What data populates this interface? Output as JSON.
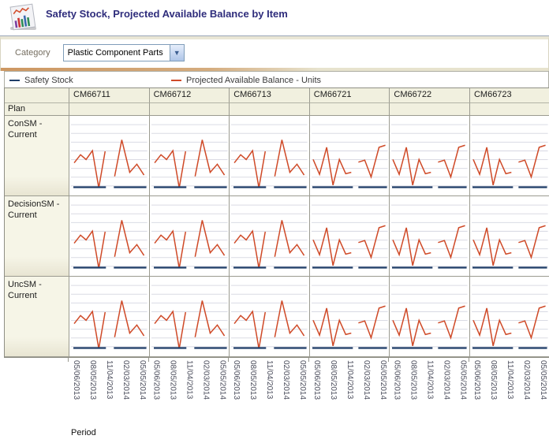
{
  "header": {
    "title": "Safety Stock, Projected Available Balance by Item",
    "icon": "chart-report-icon"
  },
  "filters": {
    "category_label": "Category",
    "category_value": "Plastic Component Parts"
  },
  "legend": [
    {
      "label": "Safety Stock",
      "color": "#1f3d68"
    },
    {
      "label": "Projected Available Balance - Units",
      "color": "#cf4a28"
    }
  ],
  "table": {
    "plan_header": "Plan",
    "columns": [
      "CM66711",
      "CM66712",
      "CM66713",
      "CM66721",
      "CM66722",
      "CM66723"
    ],
    "rows": [
      "ConSM - Current",
      "DecisionSM - Current",
      "UncSM - Current"
    ]
  },
  "chart_data": {
    "type": "line",
    "title": "Safety Stock, Projected Available Balance by Item",
    "layout": "trellis",
    "rows": [
      "ConSM - Current",
      "DecisionSM - Current",
      "UncSM - Current"
    ],
    "columns": [
      "CM66711",
      "CM66712",
      "CM66713",
      "CM66721",
      "CM66722",
      "CM66723"
    ],
    "xlabel": "Period",
    "ylabel": "",
    "x_tick_labels": [
      "05/06/2013",
      "08/05/2013",
      "11/04/2013",
      "02/03/2014",
      "05/05/2014"
    ],
    "grid": true,
    "legend_position": "top",
    "y_axis_visible": false,
    "value_note": "No y-axis labels are shown; y values are normalized 0-100 estimated from pixel heights. x is fraction of cell width. Each cell shows two disconnected segments per series. All three plan rows repeat the same per-item shapes.",
    "series_colors": {
      "safety_stock": "#1f3d68",
      "projected_available_balance": "#cf4a28"
    },
    "column_pattern": {
      "CM66711": "A",
      "CM66712": "A",
      "CM66713": "A",
      "CM66721": "B",
      "CM66722": "B",
      "CM66723": "B"
    },
    "patterns": {
      "A": {
        "pab_segments": [
          [
            [
              0.06,
              40
            ],
            [
              0.14,
              52
            ],
            [
              0.21,
              45
            ],
            [
              0.29,
              58
            ],
            [
              0.37,
              3
            ],
            [
              0.45,
              57
            ]
          ],
          [
            [
              0.57,
              20
            ],
            [
              0.66,
              74
            ],
            [
              0.76,
              26
            ],
            [
              0.85,
              38
            ],
            [
              0.94,
              22
            ]
          ]
        ],
        "safety_segments": [
          {
            "x1": 0.05,
            "x2": 0.46,
            "y": 4
          },
          {
            "x1": 0.56,
            "x2": 0.97,
            "y": 4
          }
        ]
      },
      "B": {
        "pab_segments": [
          [
            [
              0.04,
              45
            ],
            [
              0.12,
              23
            ],
            [
              0.21,
              63
            ],
            [
              0.29,
              7
            ],
            [
              0.37,
              45
            ],
            [
              0.45,
              24
            ],
            [
              0.52,
              26
            ]
          ],
          [
            [
              0.61,
              41
            ],
            [
              0.69,
              44
            ],
            [
              0.77,
              19
            ],
            [
              0.87,
              63
            ],
            [
              0.95,
              66
            ]
          ]
        ],
        "safety_segments": [
          {
            "x1": 0.03,
            "x2": 0.54,
            "y": 4
          },
          {
            "x1": 0.61,
            "x2": 0.97,
            "y": 4
          }
        ]
      }
    },
    "gridline_color": "#dadbe4"
  }
}
